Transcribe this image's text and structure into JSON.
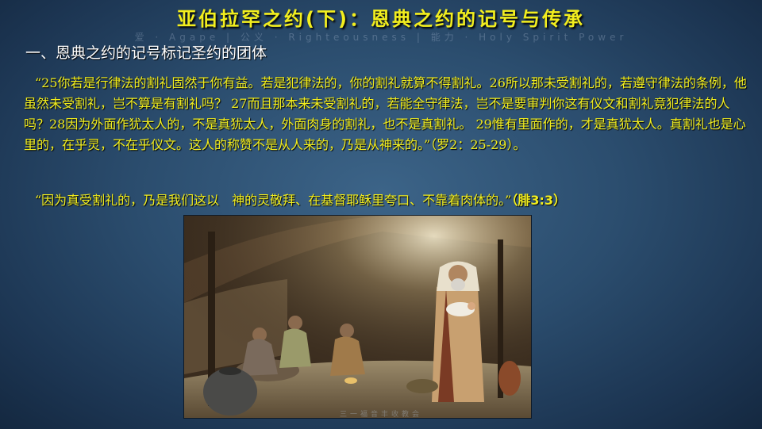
{
  "slide": {
    "title": "亚伯拉罕之约(下)：恩典之约的记号与传承",
    "watermark": "爱 · Agape  |  公义 · Righteousness  |  能力 · Holy Spirit Power",
    "section_heading": "一、恩典之约的记号标记圣约的团体",
    "quote_1": "“25你若是行律法的割礼固然于你有益。若是犯律法的，你的割礼就算不得割礼。26所以那未受割礼的，若遵守律法的条例，他虽然未受割礼，岂不算是有割礼吗？ 27而且那本来未受割礼的，若能全守律法，岂不是要审判你这有仪文和割礼竟犯律法的人吗？28因为外面作犹太人的，不是真犹太人，外面肉身的割礼，也不是真割礼。 29惟有里面作的，才是真犹太人。真割礼也是心里的，在乎灵，不在乎仪文。这人的称赞不是从人来的，乃是从神来的。”（罗2：25-29）。",
    "quote_2_text": "“因为真受割礼的，乃是我们这以　神的灵敬拜、在基督耶稣里夸口、不靠着肉体的。”",
    "quote_2_ref": "（腓3:3）",
    "footer": "三一福音丰收教会"
  },
  "colors": {
    "title": "#f2ee1e",
    "quote": "#f2ee1e",
    "heading": "#ffffff",
    "background": "#2b4d6e"
  },
  "illustration": {
    "icon": "tent-scene-father-holding-infant-illustration"
  }
}
